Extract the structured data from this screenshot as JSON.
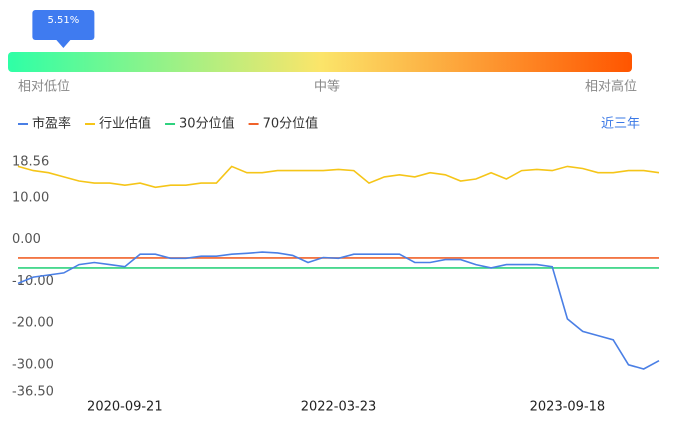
{
  "gauge": {
    "value": 5.51,
    "value_label": "5.51%",
    "labels": [
      "相对低位",
      "中等",
      "相对高位"
    ]
  },
  "period": "近三年",
  "chart_data": {
    "type": "line",
    "categories": [
      null,
      null,
      null,
      null,
      null,
      null,
      null,
      "2020-09-21",
      null,
      null,
      null,
      null,
      null,
      null,
      null,
      null,
      null,
      null,
      null,
      null,
      null,
      "2022-03-23",
      null,
      null,
      null,
      null,
      null,
      null,
      null,
      null,
      null,
      null,
      null,
      null,
      null,
      null,
      "2023-09-18",
      null,
      null,
      null,
      null,
      null,
      null
    ],
    "series": [
      {
        "name": "市盈率",
        "color": "#4a7fe5",
        "values": [
          -10.5,
          -9,
          -8.5,
          -8,
          -6,
          -5.5,
          -6,
          -6.5,
          -3.5,
          -3.5,
          -4.5,
          -4.5,
          -4,
          -4,
          -3.5,
          -3.3,
          -3,
          -3.2,
          -3.8,
          -5.5,
          -4.3,
          -4.5,
          -3.5,
          -3.5,
          -3.5,
          -3.5,
          -5.5,
          -5.5,
          -4.8,
          -4.8,
          -6,
          -6.8,
          -6,
          -6,
          -6,
          -6.5,
          -19,
          -22,
          -23,
          -24,
          -30,
          -31,
          -29
        ]
      },
      {
        "name": "行业估值",
        "color": "#f5c518",
        "values": [
          17.5,
          16.5,
          16,
          15,
          14,
          13.5,
          13.5,
          13,
          13.5,
          12.5,
          13,
          13,
          13.5,
          13.5,
          17.5,
          16,
          16,
          16.5,
          16.5,
          16.5,
          16.5,
          16.8,
          16.5,
          13.5,
          15,
          15.5,
          15,
          16,
          15.5,
          14,
          14.5,
          16,
          14.5,
          16.5,
          16.8,
          16.5,
          17.5,
          17,
          16,
          16,
          16.5,
          16.5,
          16
        ]
      },
      {
        "name": "30分位值",
        "color": "#2fd27f",
        "values": [
          -6.8,
          -6.8,
          -6.8,
          -6.8,
          -6.8,
          -6.8,
          -6.8,
          -6.8,
          -6.8,
          -6.8,
          -6.8,
          -6.8,
          -6.8,
          -6.8,
          -6.8,
          -6.8,
          -6.8,
          -6.8,
          -6.8,
          -6.8,
          -6.8,
          -6.8,
          -6.8,
          -6.8,
          -6.8,
          -6.8,
          -6.8,
          -6.8,
          -6.8,
          -6.8,
          -6.8,
          -6.8,
          -6.8,
          -6.8,
          -6.8,
          -6.8,
          -6.8,
          -6.8,
          -6.8,
          -6.8,
          -6.8,
          -6.8,
          -6.8
        ]
      },
      {
        "name": "70分位值",
        "color": "#f0622a",
        "values": [
          -4.4,
          -4.4,
          -4.4,
          -4.4,
          -4.4,
          -4.4,
          -4.4,
          -4.4,
          -4.4,
          -4.4,
          -4.4,
          -4.4,
          -4.4,
          -4.4,
          -4.4,
          -4.4,
          -4.4,
          -4.4,
          -4.4,
          -4.4,
          -4.4,
          -4.4,
          -4.4,
          -4.4,
          -4.4,
          -4.4,
          -4.4,
          -4.4,
          -4.4,
          -4.4,
          -4.4,
          -4.4,
          -4.4,
          -4.4,
          -4.4,
          -4.4,
          -4.4,
          -4.4,
          -4.4,
          -4.4,
          -4.4,
          -4.4,
          -4.4
        ]
      }
    ],
    "ylim": [
      -36.5,
      18.56
    ],
    "yticks": [
      {
        "value": 18.56,
        "label": "18.56"
      },
      {
        "value": 10,
        "label": "10.00"
      },
      {
        "value": 0,
        "label": "0.00"
      },
      {
        "value": -10,
        "label": "-10.00"
      },
      {
        "value": -20,
        "label": "-20.00"
      },
      {
        "value": -30,
        "label": "-30.00"
      },
      {
        "value": -36.5,
        "label": "-36.50"
      }
    ],
    "grid": false
  }
}
